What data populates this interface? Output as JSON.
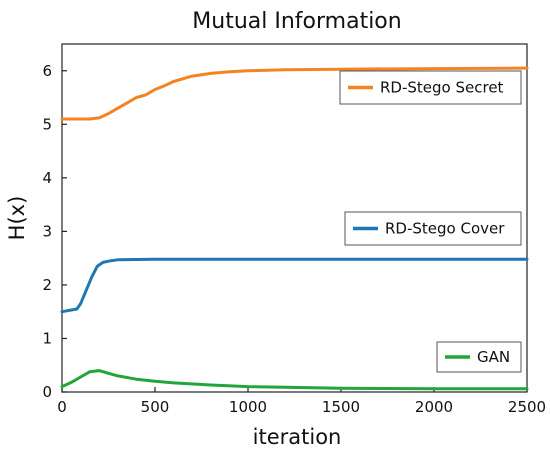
{
  "chart_data": {
    "type": "line",
    "title": "Mutual Information",
    "xlabel": "iteration",
    "ylabel": "H(x)",
    "xlim": [
      0,
      2500
    ],
    "ylim": [
      0,
      6.5
    ],
    "xticks": [
      0,
      500,
      1000,
      1500,
      2000,
      2500
    ],
    "yticks": [
      0,
      1,
      2,
      3,
      4,
      5,
      6
    ],
    "grid": false,
    "legend_placement": "inline boxes at right of each series",
    "series": [
      {
        "name": "RD-Stego Secret",
        "color": "#F28522",
        "x": [
          0,
          150,
          200,
          250,
          300,
          350,
          400,
          450,
          500,
          550,
          600,
          700,
          800,
          900,
          1000,
          1200,
          1500,
          2000,
          2500
        ],
        "y": [
          5.1,
          5.1,
          5.12,
          5.2,
          5.3,
          5.4,
          5.5,
          5.55,
          5.65,
          5.72,
          5.8,
          5.9,
          5.95,
          5.98,
          6.0,
          6.02,
          6.03,
          6.04,
          6.05
        ]
      },
      {
        "name": "RD-Stego Cover",
        "color": "#1F77B4",
        "x": [
          0,
          80,
          100,
          130,
          160,
          190,
          220,
          260,
          300,
          500,
          1000,
          1500,
          2000,
          2500
        ],
        "y": [
          1.5,
          1.55,
          1.65,
          1.9,
          2.15,
          2.35,
          2.42,
          2.45,
          2.47,
          2.48,
          2.48,
          2.48,
          2.48,
          2.48
        ]
      },
      {
        "name": "GAN",
        "color": "#22A63A",
        "x": [
          0,
          50,
          100,
          150,
          200,
          250,
          300,
          400,
          500,
          600,
          800,
          1000,
          1200,
          1500,
          2000,
          2500
        ],
        "y": [
          0.1,
          0.18,
          0.28,
          0.38,
          0.4,
          0.35,
          0.3,
          0.24,
          0.2,
          0.17,
          0.13,
          0.1,
          0.09,
          0.07,
          0.06,
          0.06
        ]
      }
    ]
  }
}
